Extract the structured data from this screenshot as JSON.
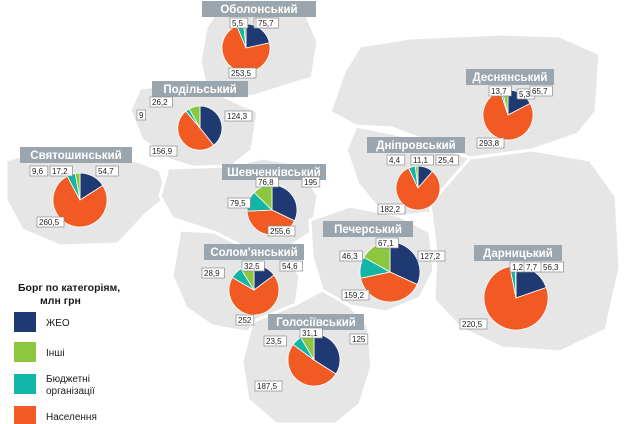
{
  "legend": {
    "title_line1": "Борг по категоріям,",
    "title_line2": "млн грн",
    "items": [
      {
        "key": "zheo",
        "label_lines": [
          "ЖЕО"
        ]
      },
      {
        "key": "inshi",
        "label_lines": [
          "Інші"
        ]
      },
      {
        "key": "budget",
        "label_lines": [
          "Бюджетні",
          "організації"
        ]
      },
      {
        "key": "naselennia",
        "label_lines": [
          "Населення"
        ]
      }
    ]
  },
  "colors": {
    "zheo": "#1f3a73",
    "inshi": "#8dc63f",
    "budget": "#12b5a6",
    "naselennia": "#f15a22",
    "district_label_bg": "#9aa5ae",
    "map_fill": "#e6e6e6",
    "map_outline": "#ffffff"
  },
  "chart_data": {
    "type": "pie",
    "categories": [
      "ЖЕО",
      "Інші",
      "Бюджетні організації",
      "Населення"
    ],
    "unit": "млн грн",
    "districts": [
      {
        "name": "Оболонський",
        "values": {
          "zheo": 75.7,
          "inshi": 5.5,
          "budget": 16.5,
          "naselennia": 253.5
        }
      },
      {
        "name": "Деснянський",
        "values": {
          "zheo": 65.7,
          "inshi": 13.7,
          "budget": 5.3,
          "naselennia": 293.8
        }
      },
      {
        "name": "Подільський",
        "values": {
          "zheo": 124.3,
          "inshi": 26.2,
          "budget": 9,
          "naselennia": 156.9
        }
      },
      {
        "name": "Святошинський",
        "values": {
          "zheo": 54.7,
          "inshi": 9.6,
          "budget": 17.2,
          "naselennia": 260.5
        }
      },
      {
        "name": "Дніпровський",
        "values": {
          "zheo": 25.4,
          "inshi": 4.4,
          "budget": 11.1,
          "naselennia": 182.2
        }
      },
      {
        "name": "Шевченківський",
        "values": {
          "zheo": 195,
          "inshi": 76.8,
          "budget": 79.5,
          "naselennia": 255.6
        }
      },
      {
        "name": "Печерський",
        "values": {
          "zheo": 127.2,
          "inshi": 67.1,
          "budget": 46.3,
          "naselennia": 159.2
        }
      },
      {
        "name": "Дарницький",
        "values": {
          "zheo": 56.3,
          "inshi": 1.2,
          "budget": 7.7,
          "naselennia": 220.5
        }
      },
      {
        "name": "Солом'янський",
        "values": {
          "zheo": 54.6,
          "inshi": 32.5,
          "budget": 28.9,
          "naselennia": 252
        }
      },
      {
        "name": "Голосіївський",
        "values": {
          "zheo": 125,
          "inshi": 31.1,
          "budget": 23.5,
          "naselennia": 187.5
        }
      }
    ]
  }
}
